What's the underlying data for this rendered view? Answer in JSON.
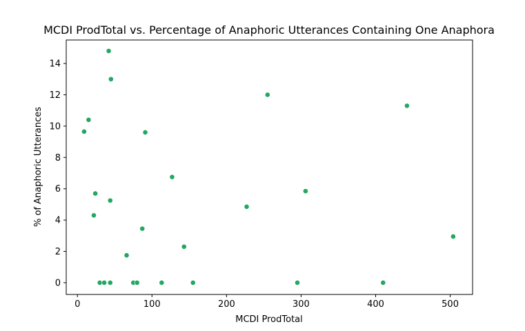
{
  "chart_data": {
    "type": "scatter",
    "title": "MCDI ProdTotal vs. Percentage of Anaphoric Utterances Containing One Anaphora",
    "xlabel": "MCDI ProdTotal",
    "ylabel": "% of Anaphoric Utterances",
    "xlim": [
      -15,
      530
    ],
    "ylim": [
      -0.75,
      15.5
    ],
    "xticks": [
      0,
      100,
      200,
      300,
      400,
      500
    ],
    "yticks": [
      0,
      2,
      4,
      6,
      8,
      10,
      12,
      14
    ],
    "grid": false,
    "legend": "none",
    "marker_color": "#22a861",
    "points": [
      {
        "x": 42,
        "y": 14.8
      },
      {
        "x": 45,
        "y": 13.0
      },
      {
        "x": 255,
        "y": 12.0
      },
      {
        "x": 442,
        "y": 11.3
      },
      {
        "x": 15,
        "y": 10.4
      },
      {
        "x": 9,
        "y": 9.65
      },
      {
        "x": 91,
        "y": 9.6
      },
      {
        "x": 127,
        "y": 6.75
      },
      {
        "x": 306,
        "y": 5.85
      },
      {
        "x": 24,
        "y": 5.7
      },
      {
        "x": 44,
        "y": 5.25
      },
      {
        "x": 227,
        "y": 4.85
      },
      {
        "x": 22,
        "y": 4.3
      },
      {
        "x": 87,
        "y": 3.45
      },
      {
        "x": 504,
        "y": 2.95
      },
      {
        "x": 143,
        "y": 2.3
      },
      {
        "x": 66,
        "y": 1.75
      },
      {
        "x": 30,
        "y": 0.0
      },
      {
        "x": 36,
        "y": 0.0
      },
      {
        "x": 44,
        "y": 0.0
      },
      {
        "x": 75,
        "y": 0.0
      },
      {
        "x": 80,
        "y": 0.0
      },
      {
        "x": 113,
        "y": 0.0
      },
      {
        "x": 155,
        "y": 0.0
      },
      {
        "x": 295,
        "y": 0.0
      },
      {
        "x": 410,
        "y": 0.0
      }
    ]
  }
}
